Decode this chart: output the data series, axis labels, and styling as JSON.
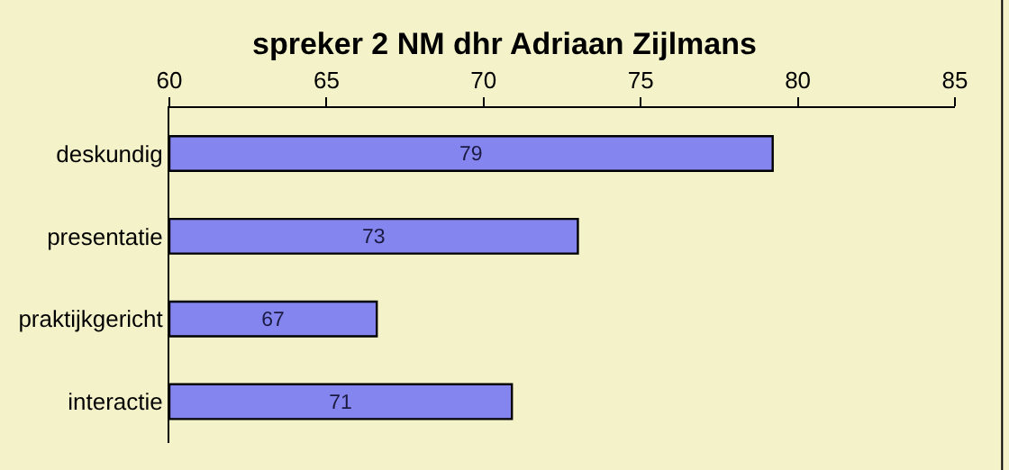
{
  "chart_data": {
    "type": "bar",
    "orientation": "horizontal",
    "title": "spreker 2 NM dhr Adriaan Zijlmans",
    "categories": [
      "deskundig",
      "presentatie",
      "praktijkgericht",
      "interactie"
    ],
    "values": [
      79.2,
      73.0,
      66.6,
      70.9
    ],
    "value_labels": [
      "79",
      "73",
      "67",
      "71"
    ],
    "color": "#8585f0",
    "xlim": [
      60,
      85
    ],
    "xticks": [
      60,
      65,
      70,
      75,
      80,
      85
    ],
    "grid": false,
    "legend": false
  }
}
